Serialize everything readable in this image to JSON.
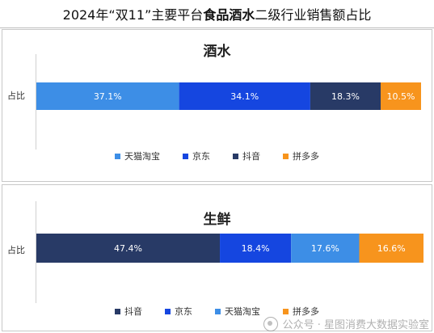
{
  "title": {
    "prefix": "2024年“双11”主要平台",
    "bold": "食品酒水",
    "suffix": "二级行业销售额占比"
  },
  "watermark": "公众号 · 星图消费大数据实验室",
  "colors": {
    "taobao": "#3d8ee6",
    "jd": "#1546e0",
    "douyin": "#283a66",
    "pdd": "#f7941d"
  },
  "chart_data": [
    {
      "type": "bar",
      "orientation": "horizontal-stacked-100",
      "title": "酒水",
      "categories": [
        "占比"
      ],
      "series": [
        {
          "name": "天猫淘宝",
          "values": [
            37.1
          ],
          "label": "37.1%",
          "color": "#3d8ee6"
        },
        {
          "name": "京东",
          "values": [
            34.1
          ],
          "label": "34.1%",
          "color": "#1546e0"
        },
        {
          "name": "抖音",
          "values": [
            18.3
          ],
          "label": "18.3%",
          "color": "#283a66"
        },
        {
          "name": "拼多多",
          "values": [
            10.5
          ],
          "label": "10.5%",
          "color": "#f7941d"
        }
      ],
      "legend_position": "bottom"
    },
    {
      "type": "bar",
      "orientation": "horizontal-stacked-100",
      "title": "生鲜",
      "categories": [
        "占比"
      ],
      "series": [
        {
          "name": "抖音",
          "values": [
            47.4
          ],
          "label": "47.4%",
          "color": "#283a66"
        },
        {
          "name": "京东",
          "values": [
            18.4
          ],
          "label": "18.4%",
          "color": "#1546e0"
        },
        {
          "name": "天猫淘宝",
          "values": [
            17.6
          ],
          "label": "17.6%",
          "color": "#3d8ee6"
        },
        {
          "name": "拼多多",
          "values": [
            16.6
          ],
          "label": "16.6%",
          "color": "#f7941d"
        }
      ],
      "legend_position": "bottom"
    }
  ]
}
